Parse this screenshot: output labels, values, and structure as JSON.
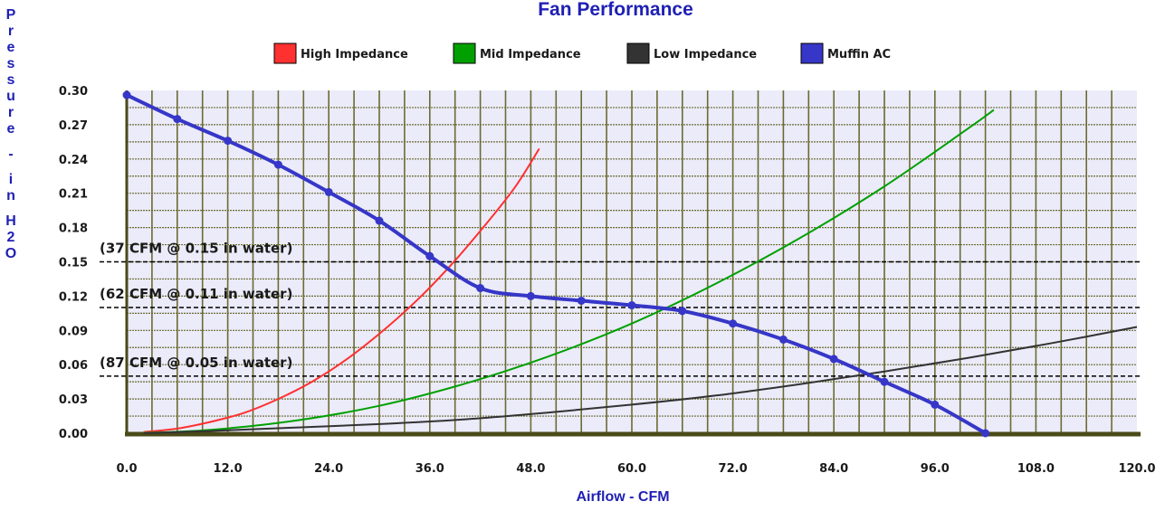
{
  "chart_data": {
    "type": "line",
    "title": "Fan Performance",
    "xlabel": "Airflow - CFM",
    "ylabel": "Pressure - in H2O",
    "xlim": [
      0,
      120
    ],
    "ylim": [
      0,
      0.3
    ],
    "x_ticks": [
      "0.0",
      "12.0",
      "24.0",
      "36.0",
      "48.0",
      "60.0",
      "72.0",
      "84.0",
      "96.0",
      "108.0",
      "120.0"
    ],
    "y_ticks": [
      "0.00",
      "0.03",
      "0.06",
      "0.09",
      "0.12",
      "0.15",
      "0.18",
      "0.21",
      "0.24",
      "0.27",
      "0.30"
    ],
    "grid": true,
    "legend_placement": "top-center",
    "series": [
      {
        "name": "High Impedance",
        "color": "#ff3030",
        "x": [
          2,
          6,
          10,
          14,
          18,
          22,
          26,
          30,
          34,
          38,
          42,
          46,
          49
        ],
        "y": [
          0.001,
          0.004,
          0.01,
          0.018,
          0.03,
          0.045,
          0.064,
          0.087,
          0.113,
          0.143,
          0.177,
          0.214,
          0.249
        ]
      },
      {
        "name": "Mid Impedance",
        "color": "#00a000",
        "x": [
          2,
          10,
          20,
          30,
          40,
          50,
          60,
          70,
          80,
          90,
          100,
          103
        ],
        "y": [
          0.0003,
          0.003,
          0.011,
          0.024,
          0.043,
          0.067,
          0.096,
          0.131,
          0.171,
          0.216,
          0.267,
          0.283
        ]
      },
      {
        "name": "Low Impedance",
        "color": "#333333",
        "x": [
          2,
          10,
          20,
          30,
          40,
          50,
          60,
          70,
          80,
          90,
          100,
          110,
          120
        ],
        "y": [
          0.0,
          0.002,
          0.005,
          0.008,
          0.012,
          0.018,
          0.025,
          0.033,
          0.043,
          0.054,
          0.066,
          0.079,
          0.093
        ]
      },
      {
        "name": "Muffin AC",
        "color": "#3636c8",
        "x": [
          0,
          6,
          12,
          18,
          24,
          30,
          36,
          42,
          48,
          54,
          60,
          66,
          72,
          78,
          84,
          90,
          96,
          102
        ],
        "y": [
          0.296,
          0.275,
          0.256,
          0.235,
          0.211,
          0.186,
          0.155,
          0.127,
          0.12,
          0.116,
          0.112,
          0.107,
          0.096,
          0.082,
          0.065,
          0.045,
          0.025,
          0.0
        ]
      }
    ],
    "reference_lines": [
      {
        "y": 0.15,
        "label": "(37 CFM @ 0.15 in water)"
      },
      {
        "y": 0.11,
        "label": "(62 CFM @ 0.11 in water)"
      },
      {
        "y": 0.05,
        "label": "(87 CFM @ 0.05 in water)"
      }
    ]
  },
  "legend_labels": [
    "High Impedance",
    "Mid Impedance",
    "Low Impedance",
    "Muffin AC"
  ],
  "colors": {
    "plot_background": "#ebebfa",
    "grid": "#6b6b32",
    "title": "#1f1fb4"
  }
}
